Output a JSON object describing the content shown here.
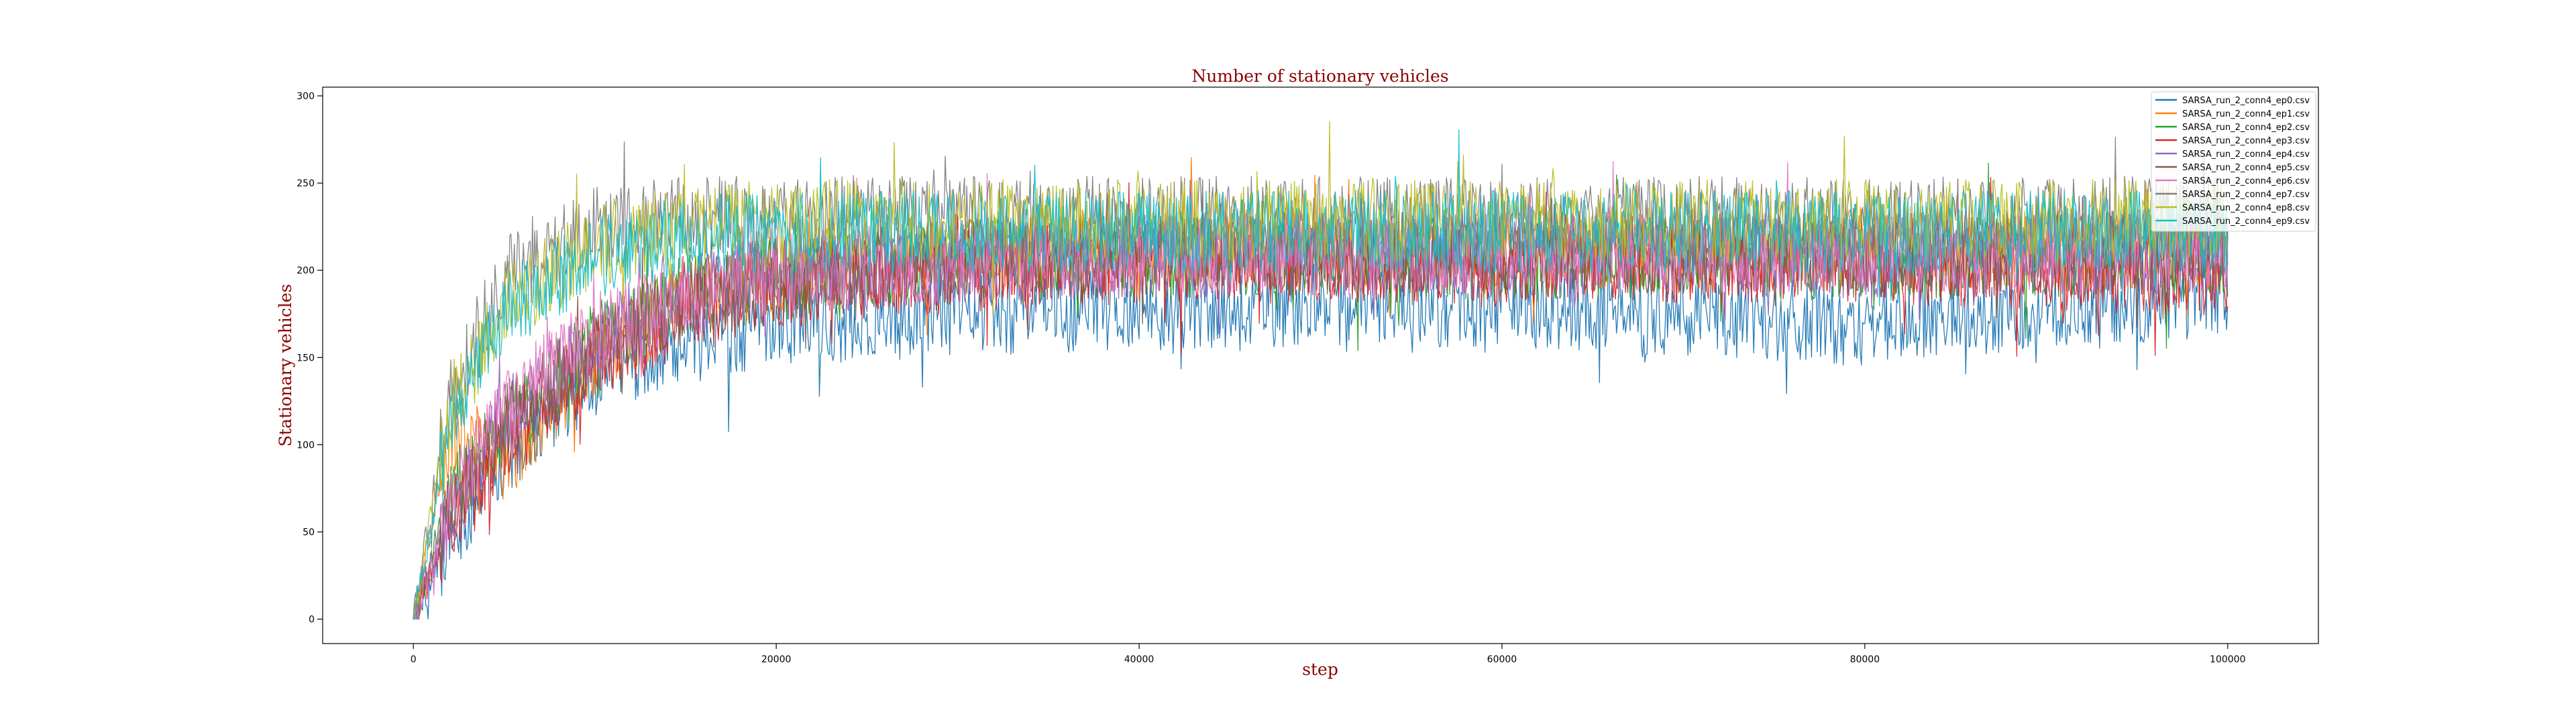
{
  "chart_data": {
    "type": "line",
    "title": "Number of stationary vehicles",
    "xlabel": "step",
    "ylabel": "Stationary vehicles",
    "xlim": [
      -5000,
      105000
    ],
    "ylim": [
      -14,
      305
    ],
    "xticks": [
      0,
      20000,
      40000,
      60000,
      80000,
      100000
    ],
    "yticks": [
      0,
      50,
      100,
      150,
      200,
      250,
      300
    ],
    "grid": false,
    "legend_position": "top-right",
    "text_color": "#8b0000",
    "series": [
      {
        "name": "SARSA_run_2_conn4_ep0.csv",
        "color": "#1f77b4",
        "x": [
          0,
          2000,
          5000,
          10000,
          15000,
          20000,
          30000,
          40000,
          50000,
          60000,
          70000,
          80000,
          90000,
          100000
        ],
        "y": [
          0,
          45,
          95,
          140,
          158,
          168,
          175,
          178,
          180,
          180,
          175,
          168,
          180,
          185
        ]
      },
      {
        "name": "SARSA_run_2_conn4_ep1.csv",
        "color": "#ff7f0e",
        "x": [
          0,
          2000,
          5000,
          10000,
          15000,
          20000,
          30000,
          40000,
          50000,
          60000,
          70000,
          80000,
          90000,
          100000
        ],
        "y": [
          0,
          110,
          90,
          150,
          185,
          200,
          210,
          212,
          212,
          210,
          212,
          212,
          212,
          212
        ]
      },
      {
        "name": "SARSA_run_2_conn4_ep2.csv",
        "color": "#2ca02c",
        "x": [
          0,
          2000,
          5000,
          10000,
          15000,
          20000,
          30000,
          40000,
          50000,
          60000,
          70000,
          80000,
          90000,
          100000
        ],
        "y": [
          0,
          70,
          110,
          160,
          185,
          195,
          205,
          208,
          208,
          206,
          208,
          205,
          208,
          208
        ]
      },
      {
        "name": "SARSA_run_2_conn4_ep3.csv",
        "color": "#d62728",
        "x": [
          0,
          2000,
          5000,
          10000,
          15000,
          20000,
          30000,
          40000,
          50000,
          60000,
          70000,
          80000,
          90000,
          100000
        ],
        "y": [
          0,
          55,
          100,
          150,
          175,
          190,
          200,
          205,
          205,
          205,
          205,
          205,
          200,
          198
        ]
      },
      {
        "name": "SARSA_run_2_conn4_ep4.csv",
        "color": "#9467bd",
        "x": [
          0,
          2000,
          5000,
          10000,
          15000,
          20000,
          30000,
          40000,
          50000,
          60000,
          70000,
          80000,
          90000,
          100000
        ],
        "y": [
          0,
          60,
          115,
          160,
          185,
          195,
          205,
          208,
          210,
          208,
          210,
          208,
          210,
          210
        ]
      },
      {
        "name": "SARSA_run_2_conn4_ep5.csv",
        "color": "#8c564b",
        "x": [
          0,
          2000,
          5000,
          10000,
          15000,
          20000,
          30000,
          40000,
          50000,
          60000,
          70000,
          80000,
          90000,
          100000
        ],
        "y": [
          0,
          60,
          110,
          155,
          182,
          195,
          205,
          208,
          210,
          210,
          210,
          208,
          210,
          210
        ]
      },
      {
        "name": "SARSA_run_2_conn4_ep6.csv",
        "color": "#e377c2",
        "x": [
          0,
          2000,
          5000,
          10000,
          15000,
          20000,
          30000,
          40000,
          50000,
          60000,
          70000,
          80000,
          90000,
          100000
        ],
        "y": [
          0,
          65,
          120,
          165,
          185,
          198,
          205,
          208,
          210,
          210,
          210,
          210,
          210,
          210
        ]
      },
      {
        "name": "SARSA_run_2_conn4_ep7.csv",
        "color": "#7f7f7f",
        "x": [
          0,
          2000,
          5000,
          10000,
          15000,
          20000,
          30000,
          40000,
          50000,
          60000,
          70000,
          80000,
          90000,
          100000
        ],
        "y": [
          0,
          130,
          195,
          225,
          230,
          230,
          230,
          230,
          230,
          230,
          230,
          230,
          230,
          230
        ]
      },
      {
        "name": "SARSA_run_2_conn4_ep8.csv",
        "color": "#bcbd22",
        "x": [
          0,
          2000,
          5000,
          10000,
          15000,
          20000,
          30000,
          40000,
          50000,
          60000,
          70000,
          80000,
          90000,
          100000
        ],
        "y": [
          0,
          120,
          180,
          215,
          225,
          228,
          228,
          228,
          228,
          228,
          228,
          228,
          228,
          228
        ]
      },
      {
        "name": "SARSA_run_2_conn4_ep9.csv",
        "color": "#17becf",
        "x": [
          0,
          2000,
          5000,
          10000,
          15000,
          20000,
          30000,
          40000,
          50000,
          60000,
          70000,
          80000,
          90000,
          100000
        ],
        "y": [
          0,
          110,
          175,
          210,
          220,
          222,
          222,
          222,
          222,
          222,
          222,
          222,
          222,
          222
        ]
      }
    ]
  }
}
